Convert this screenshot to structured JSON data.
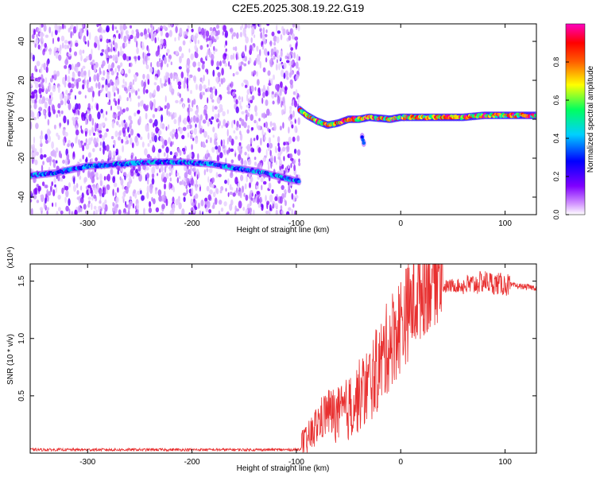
{
  "title": "C2E5.2025.308.19.22.G19",
  "chart_data": [
    {
      "type": "heatmap",
      "xlabel": "Height of straight line (km)",
      "ylabel": "Frequency (Hz)",
      "xlim": [
        -355,
        130
      ],
      "ylim": [
        -49,
        49
      ],
      "x_ticks": [
        -300,
        -200,
        -100,
        0,
        100
      ],
      "x_tick_labels": [
        "-300",
        "-200",
        "-100",
        "0",
        "100"
      ],
      "y_ticks": [
        -40,
        -20,
        0,
        20,
        40
      ],
      "y_tick_labels": [
        "-40",
        "-20",
        "0",
        "20",
        "40"
      ],
      "colorbar": {
        "label": "Normalized spectral amplitude",
        "range": [
          0,
          1
        ],
        "ticks": [
          0.0,
          0.2,
          0.4,
          0.6,
          0.8
        ],
        "tick_labels": [
          "0.0",
          "0.2",
          "0.4",
          "0.6",
          "0.8"
        ],
        "colors": [
          "#ffffff",
          "#c080ff",
          "#8000ff",
          "#0000ff",
          "#00d0ff",
          "#00ff60",
          "#ffff00",
          "#ff6000",
          "#ff0000",
          "#ff00c0"
        ]
      },
      "noise_region_x": [
        -355,
        -97
      ],
      "traces": [
        {
          "points": [
            [
              -355,
              -29
            ],
            [
              -330,
              -27.5
            ],
            [
              -300,
              -24
            ],
            [
              -270,
              -23
            ],
            [
              -240,
              -22
            ],
            [
              -210,
              -22
            ],
            [
              -180,
              -23
            ],
            [
              -160,
              -25
            ],
            [
              -140,
              -26.5
            ],
            [
              -120,
              -29
            ],
            [
              -97,
              -32
            ]
          ],
          "peak_amplitude": 0.5
        },
        {
          "points": [
            [
              -97,
              5
            ],
            [
              -90,
              2
            ],
            [
              -80,
              -1
            ],
            [
              -70,
              -3
            ],
            [
              -60,
              -2
            ],
            [
              -50,
              0
            ],
            [
              -40,
              0
            ],
            [
              -30,
              1
            ],
            [
              -20,
              0.5
            ],
            [
              -10,
              0
            ],
            [
              0,
              1
            ],
            [
              20,
              1
            ],
            [
              40,
              1
            ],
            [
              60,
              1
            ],
            [
              80,
              2
            ],
            [
              95,
              2
            ],
            [
              130,
              2
            ]
          ],
          "peak_amplitude": 1.0
        },
        {
          "points": [
            [
              -37,
              -9
            ],
            [
              -35,
              -13
            ]
          ],
          "peak_amplitude": 0.5
        }
      ]
    },
    {
      "type": "line",
      "xlabel": "Height of straight line (km)",
      "ylabel": "SNR (10 * v/v)",
      "y_scale_label": "(x10⁴)",
      "xlim": [
        -355,
        130
      ],
      "ylim": [
        0,
        1.65
      ],
      "x_ticks": [
        -300,
        -200,
        -100,
        0,
        100
      ],
      "x_tick_labels": [
        "-300",
        "-200",
        "-100",
        "0",
        "100"
      ],
      "y_ticks": [
        0.5,
        1.0,
        1.5
      ],
      "y_tick_labels": [
        "0.5",
        "1.0",
        "1.5"
      ],
      "series": [
        {
          "color": "#e83030",
          "x": [
            -355,
            -300,
            -200,
            -100,
            -90,
            -80,
            -70,
            -60,
            -50,
            -40,
            -30,
            -20,
            -10,
            0,
            10,
            20,
            30,
            40,
            50,
            60,
            70,
            80,
            90,
            100,
            110,
            120,
            130
          ],
          "y": [
            0.03,
            0.03,
            0.03,
            0.03,
            0.05,
            0.2,
            0.3,
            0.25,
            0.3,
            0.4,
            0.5,
            0.65,
            0.85,
            1.0,
            1.15,
            1.3,
            1.4,
            1.45,
            1.46,
            1.46,
            1.47,
            1.5,
            1.48,
            1.47,
            1.46,
            1.45,
            1.44
          ]
        }
      ]
    }
  ]
}
